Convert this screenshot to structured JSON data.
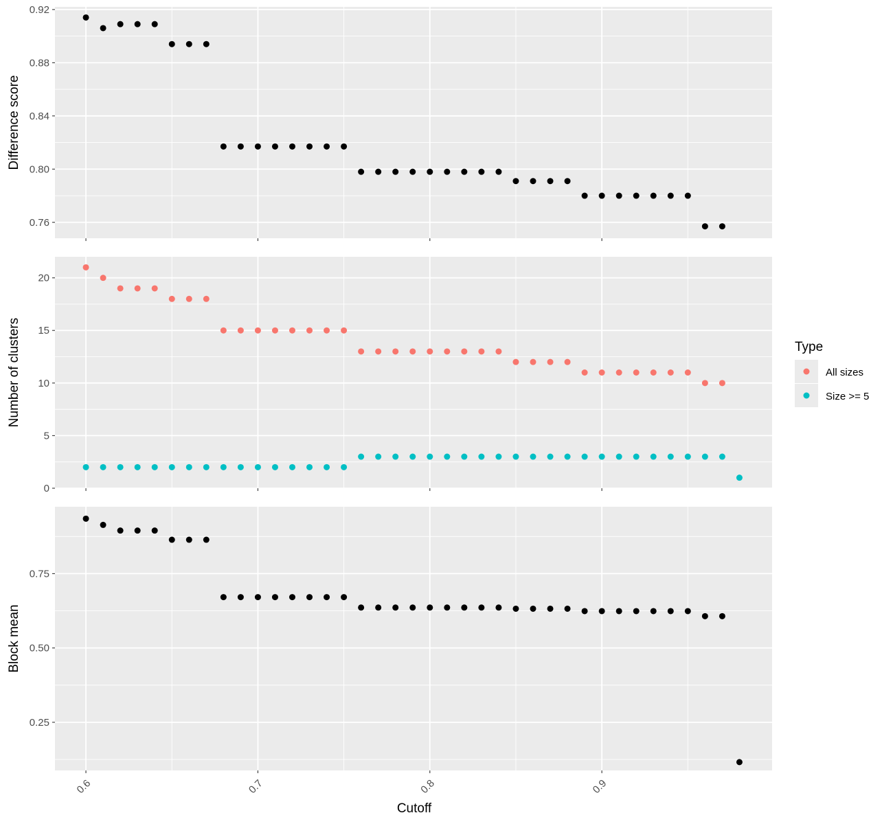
{
  "chart_data": {
    "type": "scatter",
    "xlabel": "Cutoff",
    "x_ticks": [
      "0.6",
      "0.7",
      "0.8",
      "0.9"
    ],
    "x_tick_values": [
      0.6,
      0.7,
      0.8,
      0.9
    ],
    "xlim": [
      0.582,
      0.999
    ],
    "grid": true,
    "legend": {
      "title": "Type",
      "position": "right",
      "entries": [
        {
          "label": "All sizes",
          "color": "#F8766D"
        },
        {
          "label": "Size >= 5",
          "color": "#00BFC4"
        }
      ]
    },
    "panels": [
      {
        "ylabel": "Difference score",
        "ylim": [
          0.748,
          0.922
        ],
        "y_ticks": [
          "0.76",
          "0.80",
          "0.84",
          "0.88",
          "0.92"
        ],
        "y_tick_values": [
          0.76,
          0.8,
          0.84,
          0.88,
          0.92
        ],
        "series": [
          {
            "color": "#000000",
            "x": [
              0.6,
              0.61,
              0.62,
              0.63,
              0.64,
              0.65,
              0.66,
              0.67,
              0.68,
              0.69,
              0.7,
              0.71,
              0.72,
              0.73,
              0.74,
              0.75,
              0.76,
              0.77,
              0.78,
              0.79,
              0.8,
              0.81,
              0.82,
              0.83,
              0.84,
              0.85,
              0.86,
              0.87,
              0.88,
              0.89,
              0.9,
              0.91,
              0.92,
              0.93,
              0.94,
              0.95,
              0.96,
              0.97
            ],
            "y": [
              0.914,
              0.906,
              0.909,
              0.909,
              0.909,
              0.894,
              0.894,
              0.894,
              0.817,
              0.817,
              0.817,
              0.817,
              0.817,
              0.817,
              0.817,
              0.817,
              0.798,
              0.798,
              0.798,
              0.798,
              0.798,
              0.798,
              0.798,
              0.798,
              0.798,
              0.791,
              0.791,
              0.791,
              0.791,
              0.78,
              0.78,
              0.78,
              0.78,
              0.78,
              0.78,
              0.78,
              0.757,
              0.757
            ]
          }
        ]
      },
      {
        "ylabel": "Number of clusters",
        "ylim": [
          0,
          22
        ],
        "y_ticks": [
          "0",
          "5",
          "10",
          "15",
          "20"
        ],
        "y_tick_values": [
          0,
          5,
          10,
          15,
          20
        ],
        "series": [
          {
            "name": "All sizes",
            "color": "#F8766D",
            "x": [
              0.6,
              0.61,
              0.62,
              0.63,
              0.64,
              0.65,
              0.66,
              0.67,
              0.68,
              0.69,
              0.7,
              0.71,
              0.72,
              0.73,
              0.74,
              0.75,
              0.76,
              0.77,
              0.78,
              0.79,
              0.8,
              0.81,
              0.82,
              0.83,
              0.84,
              0.85,
              0.86,
              0.87,
              0.88,
              0.89,
              0.9,
              0.91,
              0.92,
              0.93,
              0.94,
              0.95,
              0.96,
              0.97
            ],
            "y": [
              21,
              20,
              19,
              19,
              19,
              18,
              18,
              18,
              15,
              15,
              15,
              15,
              15,
              15,
              15,
              15,
              13,
              13,
              13,
              13,
              13,
              13,
              13,
              13,
              13,
              12,
              12,
              12,
              12,
              11,
              11,
              11,
              11,
              11,
              11,
              11,
              10,
              10
            ]
          },
          {
            "name": "Size >= 5",
            "color": "#00BFC4",
            "x": [
              0.6,
              0.61,
              0.62,
              0.63,
              0.64,
              0.65,
              0.66,
              0.67,
              0.68,
              0.69,
              0.7,
              0.71,
              0.72,
              0.73,
              0.74,
              0.75,
              0.76,
              0.77,
              0.78,
              0.79,
              0.8,
              0.81,
              0.82,
              0.83,
              0.84,
              0.85,
              0.86,
              0.87,
              0.88,
              0.89,
              0.9,
              0.91,
              0.92,
              0.93,
              0.94,
              0.95,
              0.96,
              0.97,
              0.98
            ],
            "y": [
              2,
              2,
              2,
              2,
              2,
              2,
              2,
              2,
              2,
              2,
              2,
              2,
              2,
              2,
              2,
              2,
              3,
              3,
              3,
              3,
              3,
              3,
              3,
              3,
              3,
              3,
              3,
              3,
              3,
              3,
              3,
              3,
              3,
              3,
              3,
              3,
              3,
              3,
              1
            ]
          }
        ]
      },
      {
        "ylabel": "Block mean",
        "ylim": [
          0.088,
          0.975
        ],
        "y_ticks": [
          "0.25",
          "0.50",
          "0.75"
        ],
        "y_tick_values": [
          0.25,
          0.5,
          0.75
        ],
        "series": [
          {
            "color": "#000000",
            "x": [
              0.6,
              0.61,
              0.62,
              0.63,
              0.64,
              0.65,
              0.66,
              0.67,
              0.68,
              0.69,
              0.7,
              0.71,
              0.72,
              0.73,
              0.74,
              0.75,
              0.76,
              0.77,
              0.78,
              0.79,
              0.8,
              0.81,
              0.82,
              0.83,
              0.84,
              0.85,
              0.86,
              0.87,
              0.88,
              0.89,
              0.9,
              0.91,
              0.92,
              0.93,
              0.94,
              0.95,
              0.96,
              0.97,
              0.98
            ],
            "y": [
              0.935,
              0.914,
              0.895,
              0.895,
              0.895,
              0.864,
              0.864,
              0.864,
              0.671,
              0.671,
              0.671,
              0.671,
              0.671,
              0.671,
              0.671,
              0.671,
              0.636,
              0.636,
              0.636,
              0.636,
              0.636,
              0.636,
              0.636,
              0.636,
              0.636,
              0.632,
              0.632,
              0.632,
              0.632,
              0.624,
              0.624,
              0.624,
              0.624,
              0.624,
              0.624,
              0.624,
              0.607,
              0.607,
              0.116
            ]
          }
        ]
      }
    ]
  }
}
